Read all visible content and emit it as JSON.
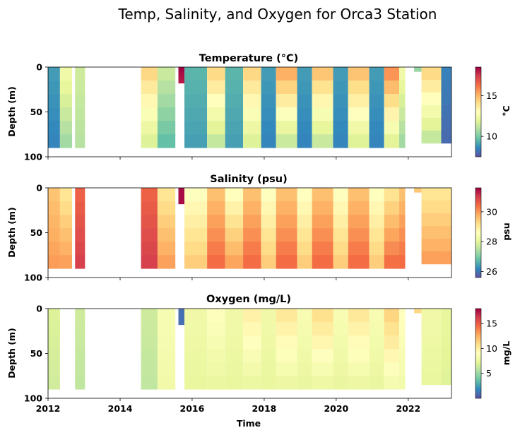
{
  "figure": {
    "suptitle": "Temp, Salinity, and Oxygen for Orca3 Station",
    "xlabel": "Time"
  },
  "chart_data": [
    {
      "type": "heatmap",
      "title": "Temperature (°C)",
      "ylabel": "Depth (m)",
      "colorbar_label": "°C",
      "colormap": "Spectral_r",
      "x_axis_type": "date",
      "xlim": [
        "2012-01-01",
        "2023-03-15"
      ],
      "x_ticks": [
        "2012",
        "2014",
        "2016",
        "2018",
        "2020",
        "2022"
      ],
      "ylim": [
        100,
        0
      ],
      "y_ticks": [
        0,
        50,
        100
      ],
      "y_inverted": true,
      "vmin": 7.5,
      "vmax": 18.5,
      "colorbar_ticks": [
        10,
        15
      ],
      "show_xticklabels": false,
      "profiles": [
        {
          "start": "2012-01-01",
          "end": "2012-05-01",
          "max_depth": 90,
          "surface": 9.0,
          "bottom": 8.5
        },
        {
          "start": "2012-05-01",
          "end": "2012-09-01",
          "max_depth": 90,
          "surface": 12.5,
          "bottom": 10.5
        },
        {
          "start": "2012-10-01",
          "end": "2013-01-10",
          "max_depth": 90,
          "surface": 11.5,
          "bottom": 11.0
        },
        {
          "start": "2014-08-01",
          "end": "2015-01-15",
          "max_depth": 90,
          "surface": 14.5,
          "bottom": 11.5
        },
        {
          "start": "2015-01-15",
          "end": "2015-07-15",
          "max_depth": 90,
          "surface": 11.5,
          "bottom": 9.5
        },
        {
          "start": "2015-08-15",
          "end": "2015-10-15",
          "max_depth": 18,
          "surface": 18.5,
          "bottom": 18.0
        },
        {
          "start": "2015-10-15",
          "end": "2016-06-01",
          "max_depth": 90,
          "surface": 9.5,
          "bottom": 9.0
        },
        {
          "start": "2016-06-01",
          "end": "2016-12-01",
          "max_depth": 90,
          "surface": 14.5,
          "bottom": 11.0
        },
        {
          "start": "2016-12-01",
          "end": "2017-06-01",
          "max_depth": 90,
          "surface": 9.5,
          "bottom": 9.0
        },
        {
          "start": "2017-06-01",
          "end": "2017-12-01",
          "max_depth": 90,
          "surface": 14.5,
          "bottom": 11.5
        },
        {
          "start": "2017-12-01",
          "end": "2018-05-01",
          "max_depth": 90,
          "surface": 9.0,
          "bottom": 8.5
        },
        {
          "start": "2018-05-01",
          "end": "2018-12-01",
          "max_depth": 90,
          "surface": 15.5,
          "bottom": 11.0
        },
        {
          "start": "2018-12-01",
          "end": "2019-05-01",
          "max_depth": 90,
          "surface": 9.0,
          "bottom": 8.5
        },
        {
          "start": "2019-05-01",
          "end": "2019-12-01",
          "max_depth": 90,
          "surface": 15.0,
          "bottom": 11.0
        },
        {
          "start": "2019-12-01",
          "end": "2020-05-01",
          "max_depth": 90,
          "surface": 9.0,
          "bottom": 8.5
        },
        {
          "start": "2020-05-01",
          "end": "2020-12-01",
          "max_depth": 90,
          "surface": 15.0,
          "bottom": 11.5
        },
        {
          "start": "2020-12-01",
          "end": "2021-05-01",
          "max_depth": 90,
          "surface": 9.0,
          "bottom": 8.5
        },
        {
          "start": "2021-05-01",
          "end": "2021-10-01",
          "max_depth": 90,
          "surface": 16.0,
          "bottom": 11.5
        },
        {
          "start": "2021-10-01",
          "end": "2021-12-01",
          "max_depth": 90,
          "surface": 12.5,
          "bottom": 10.5
        },
        {
          "start": "2022-03-01",
          "end": "2022-05-15",
          "max_depth": 5,
          "surface": 10.5,
          "bottom": 10.5
        },
        {
          "start": "2022-05-15",
          "end": "2022-12-01",
          "max_depth": 85,
          "surface": 14.5,
          "bottom": 11.0
        },
        {
          "start": "2022-12-01",
          "end": "2023-03-15",
          "max_depth": 85,
          "surface": 8.5,
          "bottom": 8.0
        }
      ]
    },
    {
      "type": "heatmap",
      "title": "Salinity (psu)",
      "ylabel": "Depth (m)",
      "colorbar_label": "psu",
      "colormap": "Spectral_r",
      "x_axis_type": "date",
      "xlim": [
        "2012-01-01",
        "2023-03-15"
      ],
      "x_ticks": [
        "2012",
        "2014",
        "2016",
        "2018",
        "2020",
        "2022"
      ],
      "ylim": [
        100,
        0
      ],
      "y_ticks": [
        0,
        50,
        100
      ],
      "y_inverted": true,
      "vmin": 25.6,
      "vmax": 31.6,
      "colorbar_ticks": [
        26,
        28,
        30
      ],
      "show_xticklabels": false,
      "profiles": [
        {
          "start": "2012-01-01",
          "end": "2012-05-01",
          "max_depth": 90,
          "surface": 29.5,
          "bottom": 30.0
        },
        {
          "start": "2012-05-01",
          "end": "2012-09-01",
          "max_depth": 90,
          "surface": 29.0,
          "bottom": 30.0
        },
        {
          "start": "2012-10-01",
          "end": "2013-01-10",
          "max_depth": 90,
          "surface": 30.5,
          "bottom": 31.0
        },
        {
          "start": "2014-08-01",
          "end": "2015-01-15",
          "max_depth": 90,
          "surface": 30.5,
          "bottom": 31.0
        },
        {
          "start": "2015-01-15",
          "end": "2015-07-15",
          "max_depth": 90,
          "surface": 29.0,
          "bottom": 30.0
        },
        {
          "start": "2015-08-15",
          "end": "2015-10-15",
          "max_depth": 18,
          "surface": 31.5,
          "bottom": 31.5
        },
        {
          "start": "2015-10-15",
          "end": "2016-06-01",
          "max_depth": 90,
          "surface": 28.5,
          "bottom": 29.5
        },
        {
          "start": "2016-06-01",
          "end": "2016-12-01",
          "max_depth": 90,
          "surface": 29.5,
          "bottom": 30.5
        },
        {
          "start": "2016-12-01",
          "end": "2017-06-01",
          "max_depth": 90,
          "surface": 28.5,
          "bottom": 30.0
        },
        {
          "start": "2017-06-01",
          "end": "2017-12-01",
          "max_depth": 90,
          "surface": 29.5,
          "bottom": 30.5
        },
        {
          "start": "2017-12-01",
          "end": "2018-05-01",
          "max_depth": 90,
          "surface": 28.5,
          "bottom": 29.5
        },
        {
          "start": "2018-05-01",
          "end": "2018-12-01",
          "max_depth": 90,
          "surface": 29.5,
          "bottom": 30.5
        },
        {
          "start": "2018-12-01",
          "end": "2019-05-01",
          "max_depth": 90,
          "surface": 28.5,
          "bottom": 29.5
        },
        {
          "start": "2019-05-01",
          "end": "2019-12-01",
          "max_depth": 90,
          "surface": 29.5,
          "bottom": 30.5
        },
        {
          "start": "2019-12-01",
          "end": "2020-05-01",
          "max_depth": 90,
          "surface": 28.5,
          "bottom": 29.5
        },
        {
          "start": "2020-05-01",
          "end": "2020-12-01",
          "max_depth": 90,
          "surface": 29.5,
          "bottom": 30.5
        },
        {
          "start": "2020-12-01",
          "end": "2021-05-01",
          "max_depth": 90,
          "surface": 28.5,
          "bottom": 29.5
        },
        {
          "start": "2021-05-01",
          "end": "2021-10-01",
          "max_depth": 90,
          "surface": 29.0,
          "bottom": 30.5
        },
        {
          "start": "2021-10-01",
          "end": "2021-12-01",
          "max_depth": 90,
          "surface": 29.5,
          "bottom": 30.5
        },
        {
          "start": "2022-03-01",
          "end": "2022-05-15",
          "max_depth": 5,
          "surface": 29.5,
          "bottom": 29.5
        },
        {
          "start": "2022-05-15",
          "end": "2022-12-01",
          "max_depth": 85,
          "surface": 29.0,
          "bottom": 30.0
        },
        {
          "start": "2022-12-01",
          "end": "2023-03-15",
          "max_depth": 85,
          "surface": 29.0,
          "bottom": 30.0
        }
      ]
    },
    {
      "type": "heatmap",
      "title": "Oxygen (mg/L)",
      "ylabel": "Depth (m)",
      "colorbar_label": "mg/L",
      "colormap": "Spectral_r",
      "x_axis_type": "date",
      "xlim": [
        "2012-01-01",
        "2023-03-15"
      ],
      "x_ticks": [
        "2012",
        "2014",
        "2016",
        "2018",
        "2020",
        "2022"
      ],
      "ylim": [
        100,
        0
      ],
      "y_ticks": [
        0,
        50,
        100
      ],
      "y_inverted": true,
      "vmin": 0,
      "vmax": 18,
      "colorbar_ticks": [
        5,
        10,
        15
      ],
      "show_xticklabels": true,
      "profiles": [
        {
          "start": "2012-01-01",
          "end": "2012-05-01",
          "max_depth": 90,
          "surface": 7.0,
          "bottom": 6.5
        },
        {
          "start": "2012-10-01",
          "end": "2013-01-10",
          "max_depth": 90,
          "surface": 6.5,
          "bottom": 6.0
        },
        {
          "start": "2014-08-01",
          "end": "2015-01-15",
          "max_depth": 90,
          "surface": 6.5,
          "bottom": 6.0
        },
        {
          "start": "2015-01-15",
          "end": "2015-07-15",
          "max_depth": 90,
          "surface": 8.5,
          "bottom": 8.0
        },
        {
          "start": "2015-08-15",
          "end": "2015-10-15",
          "max_depth": 18,
          "surface": 1.0,
          "bottom": 1.0
        },
        {
          "start": "2015-10-15",
          "end": "2016-06-01",
          "max_depth": 90,
          "surface": 8.0,
          "bottom": 7.5
        },
        {
          "start": "2016-06-01",
          "end": "2016-12-01",
          "max_depth": 90,
          "surface": 9.0,
          "bottom": 7.5
        },
        {
          "start": "2016-12-01",
          "end": "2017-06-01",
          "max_depth": 90,
          "surface": 8.0,
          "bottom": 7.5
        },
        {
          "start": "2017-06-01",
          "end": "2017-12-01",
          "max_depth": 90,
          "surface": 10.0,
          "bottom": 7.5
        },
        {
          "start": "2017-12-01",
          "end": "2018-05-01",
          "max_depth": 90,
          "surface": 8.0,
          "bottom": 7.5
        },
        {
          "start": "2018-05-01",
          "end": "2018-12-01",
          "max_depth": 90,
          "surface": 10.5,
          "bottom": 7.5
        },
        {
          "start": "2018-12-01",
          "end": "2019-05-01",
          "max_depth": 90,
          "surface": 8.5,
          "bottom": 7.5
        },
        {
          "start": "2019-05-01",
          "end": "2019-12-01",
          "max_depth": 90,
          "surface": 11.0,
          "bottom": 7.5
        },
        {
          "start": "2019-12-01",
          "end": "2020-05-01",
          "max_depth": 90,
          "surface": 8.5,
          "bottom": 7.5
        },
        {
          "start": "2020-05-01",
          "end": "2020-12-01",
          "max_depth": 90,
          "surface": 10.5,
          "bottom": 7.5
        },
        {
          "start": "2020-12-01",
          "end": "2021-05-01",
          "max_depth": 90,
          "surface": 8.5,
          "bottom": 7.5
        },
        {
          "start": "2021-05-01",
          "end": "2021-10-01",
          "max_depth": 90,
          "surface": 11.5,
          "bottom": 8.0
        },
        {
          "start": "2021-10-01",
          "end": "2021-12-01",
          "max_depth": 90,
          "surface": 9.0,
          "bottom": 8.0
        },
        {
          "start": "2022-03-01",
          "end": "2022-05-15",
          "max_depth": 5,
          "surface": 11.0,
          "bottom": 11.0
        },
        {
          "start": "2022-05-15",
          "end": "2022-12-01",
          "max_depth": 85,
          "surface": 8.0,
          "bottom": 7.5
        },
        {
          "start": "2022-12-01",
          "end": "2023-03-15",
          "max_depth": 85,
          "surface": 7.5,
          "bottom": 7.0
        }
      ]
    }
  ]
}
